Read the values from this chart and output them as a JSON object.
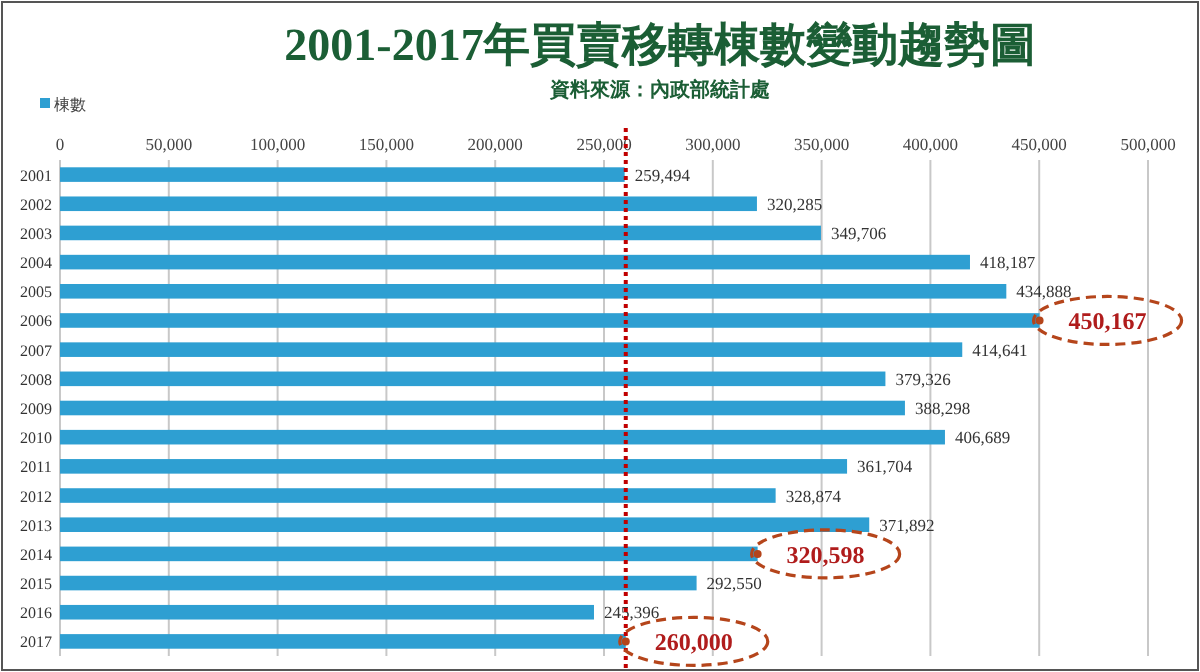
{
  "chart_data": {
    "type": "bar",
    "orientation": "horizontal",
    "title": "2001-2017年買賣移轉棟數變動趨勢圖",
    "subtitle": "資料來源：內政部統計處",
    "legend": "top left",
    "grid": "x",
    "categories": [
      "2001",
      "2002",
      "2003",
      "2004",
      "2005",
      "2006",
      "2007",
      "2008",
      "2009",
      "2010",
      "2011",
      "2012",
      "2013",
      "2014",
      "2015",
      "2016",
      "2017"
    ],
    "series": [
      {
        "name": "棟數",
        "color": "#2e9fd2",
        "values": [
          259494,
          320285,
          349706,
          418187,
          434888,
          450167,
          414641,
          379326,
          388298,
          406689,
          361704,
          328874,
          371892,
          320598,
          292550,
          245396,
          260000
        ],
        "value_labels": [
          "259,494",
          "320,285",
          "349,706",
          "418,187",
          "434,888",
          null,
          "414,641",
          "379,326",
          "388,298",
          "406,689",
          "361,704",
          "328,874",
          "371,892",
          null,
          "292,550",
          "245,396",
          null
        ]
      }
    ],
    "xlim": [
      0,
      500000
    ],
    "xticks": [
      0,
      {
        "value": 50000,
        "label": "50,000"
      },
      {
        "value": 100000,
        "label": "100,000"
      },
      {
        "value": 150000,
        "label": "150,000"
      },
      {
        "value": 200000,
        "label": "200,000"
      },
      {
        "value": 250000,
        "label": "250,000"
      },
      {
        "value": 300000,
        "label": "300,000"
      },
      {
        "value": 350000,
        "label": "350,000"
      },
      {
        "value": 400000,
        "label": "400,000"
      },
      {
        "value": 450000,
        "label": "450,000"
      },
      {
        "value": 500000,
        "label": "500,000"
      }
    ],
    "ref_lines": [
      {
        "axis": "x",
        "value": 260000,
        "color": "#c00000",
        "line_style": "dotted"
      }
    ],
    "annotations": [
      {
        "text": "450,167",
        "x": 450167,
        "y": "2006"
      },
      {
        "text": "320,598",
        "x": 320598,
        "y": "2014"
      },
      {
        "text": "260,000",
        "x": 260000,
        "y": "2017"
      }
    ]
  }
}
